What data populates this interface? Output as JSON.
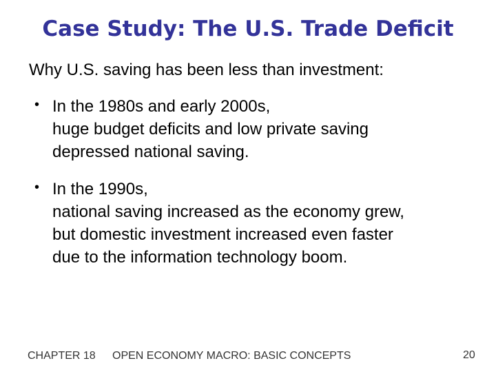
{
  "slide": {
    "title": "Case Study:  The U.S. Trade Deficit",
    "intro": "Why U.S. saving has been less than investment:",
    "bullets": [
      {
        "marker": "•",
        "lines": [
          "In the 1980s and early 2000s,",
          "huge budget deficits and low private saving",
          "depressed national saving."
        ]
      },
      {
        "marker": "•",
        "lines": [
          "In the 1990s,",
          "national saving increased as the economy grew,",
          "but domestic investment increased even faster",
          "due to the information technology boom."
        ]
      }
    ]
  },
  "footer": {
    "chapter": "CHAPTER 18",
    "subject": "OPEN ECONOMY MACRO:  BASIC CONCEPTS",
    "page_number": "20"
  },
  "colors": {
    "title": "#333399",
    "body_text": "#000000",
    "footer_text": "#333333",
    "background": "#ffffff"
  }
}
